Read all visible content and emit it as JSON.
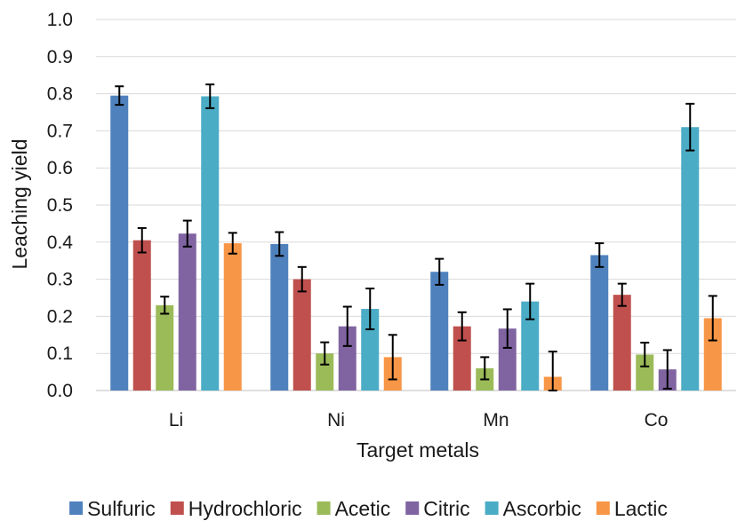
{
  "chart_data": {
    "type": "bar",
    "xlabel": "Target metals",
    "ylabel": "Leaching yield",
    "ylim": [
      0,
      1.0
    ],
    "yticks": [
      "0.0",
      "0.1",
      "0.2",
      "0.3",
      "0.4",
      "0.5",
      "0.6",
      "0.7",
      "0.8",
      "0.9",
      "1.0"
    ],
    "grid": true,
    "legend_position": "bottom",
    "categories": [
      "Li",
      "Ni",
      "Mn",
      "Co"
    ],
    "series": [
      {
        "name": "Sulfuric",
        "color": "#4f81bd",
        "values": [
          0.795,
          0.395,
          0.32,
          0.365
        ],
        "errors": [
          0.025,
          0.032,
          0.035,
          0.032
        ]
      },
      {
        "name": "Hydrochloric",
        "color": "#c0504d",
        "values": [
          0.405,
          0.3,
          0.173,
          0.258
        ],
        "errors": [
          0.033,
          0.033,
          0.038,
          0.03
        ]
      },
      {
        "name": "Acetic",
        "color": "#9bbb59",
        "values": [
          0.23,
          0.1,
          0.06,
          0.097
        ],
        "errors": [
          0.023,
          0.03,
          0.03,
          0.032
        ]
      },
      {
        "name": "Citric",
        "color": "#8064a2",
        "values": [
          0.423,
          0.173,
          0.167,
          0.057
        ],
        "errors": [
          0.035,
          0.053,
          0.052,
          0.052
        ]
      },
      {
        "name": "Ascorbic",
        "color": "#4bacc6",
        "values": [
          0.793,
          0.22,
          0.24,
          0.71
        ],
        "errors": [
          0.032,
          0.055,
          0.048,
          0.063
        ]
      },
      {
        "name": "Lactic",
        "color": "#f79646",
        "values": [
          0.397,
          0.09,
          0.037,
          0.195
        ],
        "errors": [
          0.028,
          0.06,
          0.068,
          0.06
        ]
      }
    ]
  }
}
